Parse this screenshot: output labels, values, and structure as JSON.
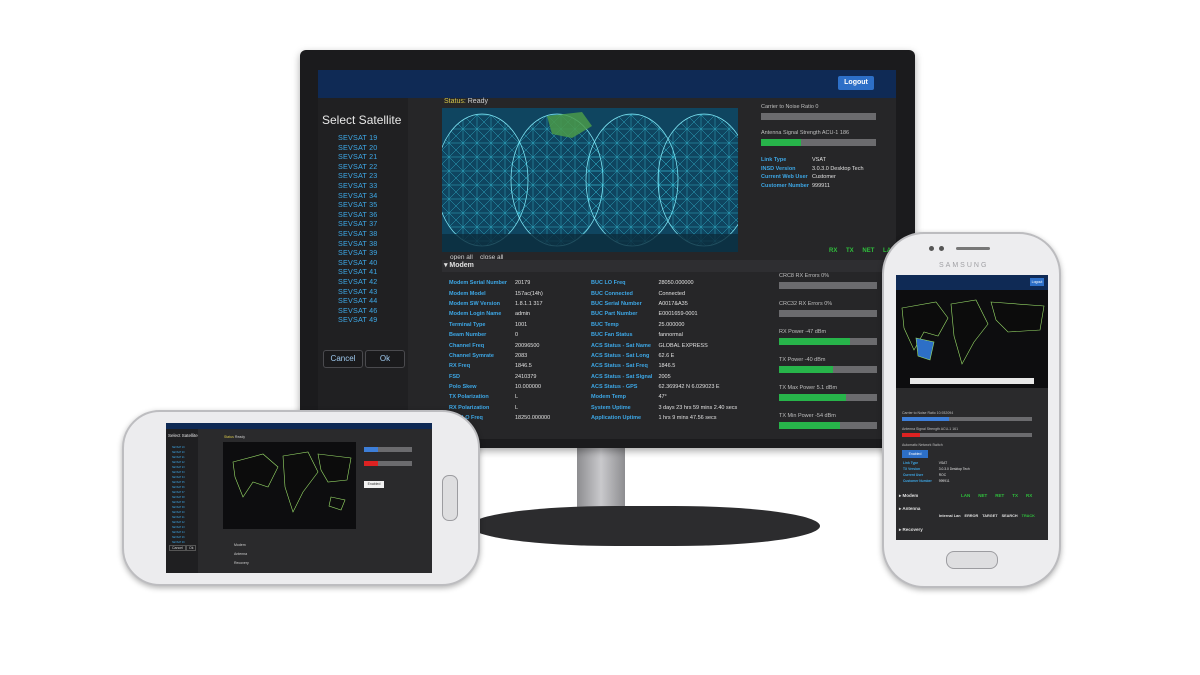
{
  "desktop": {
    "logout_label": "Logout",
    "select_satellite_title": "Select Satellite",
    "satellites": [
      "SEVSAT 19",
      "SEVSAT 20",
      "SEVSAT 21",
      "SEVSAT 22",
      "SEVSAT 23",
      "SEVSAT 33",
      "SEVSAT 34",
      "SEVSAT 35",
      "SEVSAT 36",
      "SEVSAT 37",
      "SEVSAT 38",
      "SEVSAT 38",
      "SEVSAT 39",
      "SEVSAT 40",
      "SEVSAT 41",
      "SEVSAT 42",
      "SEVSAT 43",
      "SEVSAT 44",
      "SEVSAT 46",
      "SEVSAT 49"
    ],
    "cancel_label": "Cancel",
    "ok_label": "Ok",
    "status_label": "Status:",
    "status_value": "Ready",
    "open_all": "open all",
    "close_all": "close all",
    "right_bars": [
      {
        "label": "Carrier to Noise Ratio 0",
        "level": 0.0
      },
      {
        "label": "Antenna Signal Strength ACU-1 186",
        "level": 0.35
      }
    ],
    "info": [
      {
        "key": "Link Type",
        "value": "VSAT"
      },
      {
        "key": "INSD Version",
        "value": "3.0.3.0 Desktop Tech"
      },
      {
        "key": "Current Web User",
        "value": "Customer"
      },
      {
        "key": "Customer Number",
        "value": "999911"
      }
    ],
    "tabs": [
      "RX",
      "TX",
      "NET",
      "LAN"
    ],
    "modem_header": "Modem",
    "modem_left": [
      {
        "key": "Modem Serial Number",
        "value": "20179"
      },
      {
        "key": "Modem Model",
        "value": "157ac(14h)"
      },
      {
        "key": "Modem SW Version",
        "value": "1.8.1.1 317"
      },
      {
        "key": "Modem Login Name",
        "value": "admin"
      },
      {
        "key": "Terminal Type",
        "value": "1001"
      },
      {
        "key": "Beam Number",
        "value": "0"
      },
      {
        "key": "Channel Freq",
        "value": "20096500"
      },
      {
        "key": "Channel Symrate",
        "value": "2083"
      },
      {
        "key": "RX Freq",
        "value": "1846.5"
      },
      {
        "key": "FSD",
        "value": "2410379"
      },
      {
        "key": "Polo Skew",
        "value": "10.000000"
      },
      {
        "key": "TX Polarization",
        "value": "L"
      },
      {
        "key": "RX Polarization",
        "value": "L"
      },
      {
        "key": "LNB LO Freq",
        "value": "18250.000000"
      }
    ],
    "modem_mid": [
      {
        "key": "BUC LO Freq",
        "value": "28050.000000"
      },
      {
        "key": "BUC Connected",
        "value": "Connected"
      },
      {
        "key": "BUC Serial Number",
        "value": "A0017&A35"
      },
      {
        "key": "BUC Part Number",
        "value": "E0001659-0001"
      },
      {
        "key": "BUC Temp",
        "value": "25.000000"
      },
      {
        "key": "BUC Fan Status",
        "value": "fannormal"
      },
      {
        "key": "ACS Status - Sat Name",
        "value": "GLOBAL EXPRESS"
      },
      {
        "key": "ACS Status - Sat Long",
        "value": "62.6 E"
      },
      {
        "key": "ACS Status - Sat Freq",
        "value": "1846.5"
      },
      {
        "key": "ACS Status - Sat Signal",
        "value": "2005"
      },
      {
        "key": "ACS Status - GPS",
        "value": "62.369942 N 6.029023 E"
      },
      {
        "key": "Modem Temp",
        "value": "47°"
      },
      {
        "key": "System Uptime",
        "value": "3 days 23 hrs 59 mins 2.40 secs"
      },
      {
        "key": "Application Uptime",
        "value": "1 hrs 9 mins 47.56 secs"
      }
    ],
    "modem_bars": [
      {
        "label": "CRC8 RX Errors 0%",
        "level": 0.0
      },
      {
        "label": "CRC32 RX Errors 0%",
        "level": 0.0
      },
      {
        "label": "RX Power -47 dBm",
        "level": 0.72
      },
      {
        "label": "TX Power -40 dBm",
        "level": 0.55
      },
      {
        "label": "TX Max Power 5.1 dBm",
        "level": 0.68
      },
      {
        "label": "TX Min Power -54 dBm",
        "level": 0.62
      }
    ]
  },
  "landscape_phone": {
    "select_satellite_title": "Select Satellite",
    "status_label": "Status",
    "status_value": "Ready",
    "enabled_label": "Enabled",
    "modem_label": "Modem",
    "antenna_label": "Antenna",
    "recovery_label": "Recovery",
    "cancel_label": "Cancel",
    "ok_label": "Ok"
  },
  "portrait_phone": {
    "brand": "SAMSUNG",
    "logout_label": "Logout",
    "carrier_label": "Carrier to Noise Ratio 10.932094",
    "antenna_label": "Antenna Signal Strength ACU-1 161",
    "automatic_label": "Automatic Network Switch",
    "enabled_label": "Enabled",
    "info": [
      {
        "key": "Link Type",
        "value": "VSAT"
      },
      {
        "key": "TX Version",
        "value": "3.0.3.0 Desktop Tech"
      },
      {
        "key": "Current User",
        "value": "ROC"
      },
      {
        "key": "Customer Number",
        "value": "999911"
      }
    ],
    "modem_label": "Modem",
    "modem_tabs": [
      "LAN",
      "NET",
      "RET",
      "TX",
      "RX"
    ],
    "antenna_label2": "Antenna",
    "antenna_tabs": [
      "Internal Lan",
      "ERROR",
      "TARGET",
      "SEARCH",
      "TRACK"
    ],
    "recovery_label": "Recovery"
  },
  "colors": {
    "topbar": "#0f2a55",
    "link": "#3da7e6",
    "green": "#27b44a",
    "map_bg": "#123e56"
  }
}
